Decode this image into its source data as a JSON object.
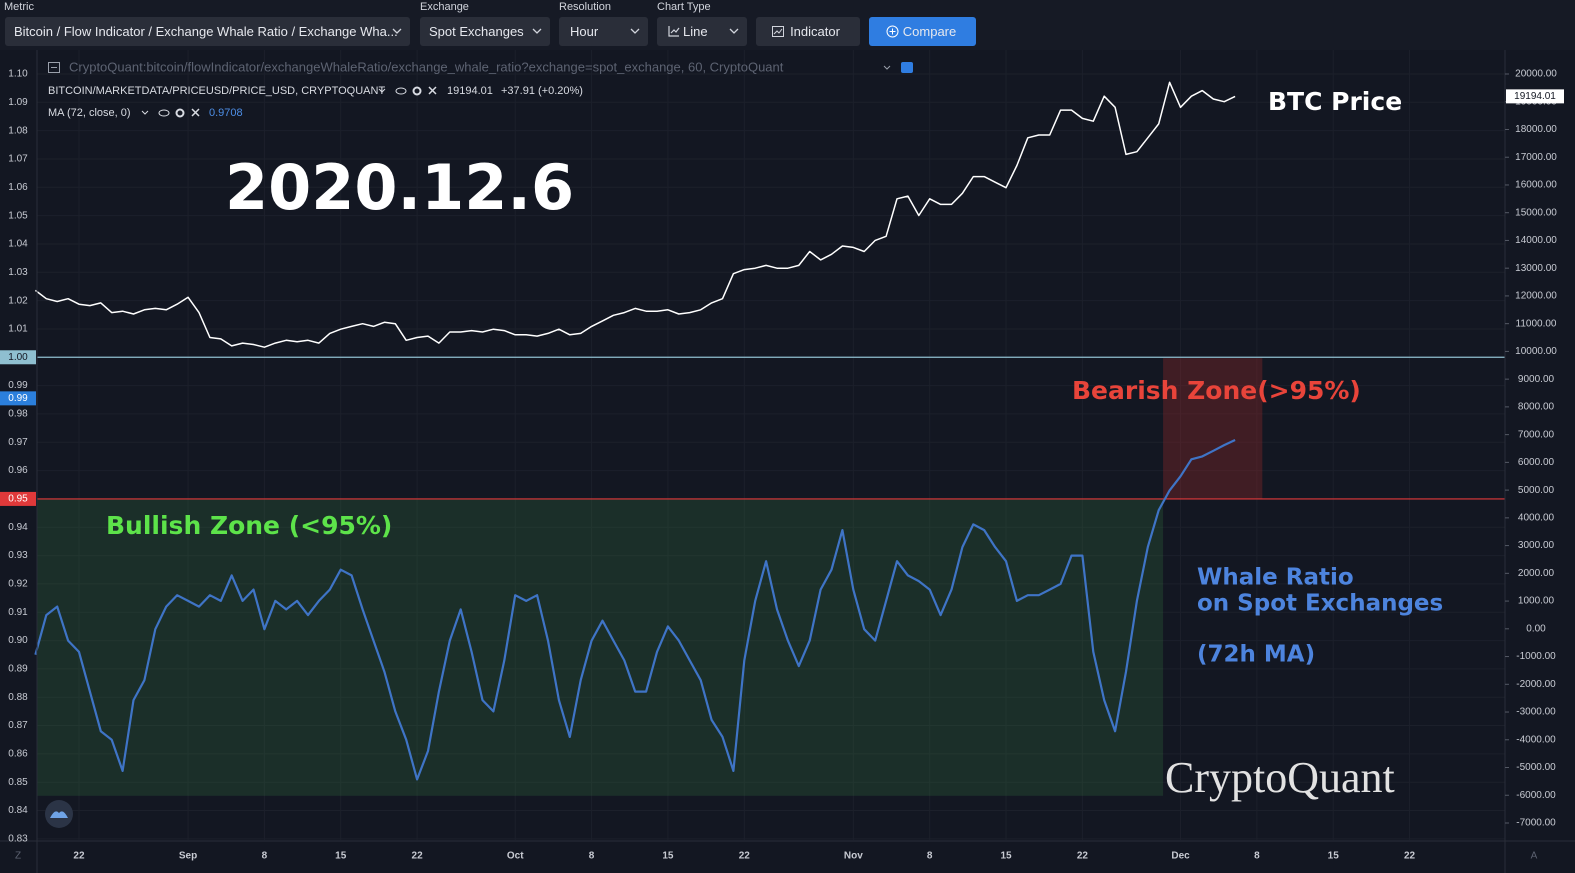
{
  "toolbar": {
    "metric_label": "Metric",
    "metric": "Bitcoin / Flow Indicator / Exchange Whale Ratio / Exchange Wha...",
    "exchange_label": "Exchange",
    "exchange": "Spot Exchanges",
    "resolution_label": "Resolution",
    "resolution": "Hour",
    "chart_type_label": "Chart Type",
    "chart_type": "Line",
    "indicator": "Indicator",
    "compare": "Compare"
  },
  "chart_data": {
    "type": "line",
    "source": "CryptoQuant:bitcoin/flowIndicator/exchangeWhaleRatio/exchange_whale_ratio?exchange=spot_exchange, 60, CryptoQuant",
    "price_change": "+37.91 (+0.20%)",
    "x": [
      -4,
      -3,
      -2,
      -1,
      0,
      1,
      2,
      3,
      4,
      5,
      6,
      7,
      8,
      9,
      10,
      11,
      12,
      13,
      14,
      15,
      16,
      17,
      18,
      19,
      20,
      21,
      22,
      23,
      24,
      25,
      26,
      27,
      28,
      29,
      30,
      31,
      32,
      33,
      34,
      35,
      36,
      37,
      38,
      39,
      40,
      41,
      42,
      43,
      44,
      45,
      46,
      47,
      48,
      49,
      50,
      51,
      52,
      53,
      54,
      55,
      56,
      57,
      58,
      59,
      60,
      61,
      62,
      63,
      64,
      65,
      66,
      67,
      68,
      69,
      70,
      71,
      72,
      73,
      74,
      75,
      76,
      77,
      78,
      79,
      80,
      81,
      82,
      83,
      84,
      85,
      86,
      87,
      88,
      89,
      90,
      91,
      92,
      93,
      94,
      95,
      96,
      97,
      98,
      99,
      100,
      101,
      102,
      103,
      104,
      105,
      106
    ],
    "series": [
      {
        "name": "BITCOIN/MARKETDATA/PRICEUSD/PRICE_USD, CRYPTOQUANT",
        "color": "#ffffff",
        "axis": "y2",
        "values": [
          12200,
          11900,
          11800,
          11900,
          11700,
          11650,
          11750,
          11400,
          11450,
          11350,
          11500,
          11550,
          11500,
          11700,
          11950,
          11400,
          10500,
          10450,
          10200,
          10300,
          10250,
          10150,
          10300,
          10400,
          10350,
          10400,
          10300,
          10650,
          10800,
          10900,
          11000,
          10900,
          11050,
          11000,
          10400,
          10500,
          10550,
          10300,
          10700,
          10700,
          10750,
          10700,
          10800,
          10750,
          10600,
          10600,
          10550,
          10650,
          10800,
          10600,
          10650,
          10900,
          11100,
          11300,
          11400,
          11550,
          11450,
          11450,
          11500,
          11350,
          11400,
          11500,
          11750,
          11900,
          12800,
          12950,
          13000,
          13100,
          13000,
          13000,
          13100,
          13600,
          13300,
          13500,
          13800,
          13750,
          13600,
          14000,
          14150,
          15500,
          15600,
          14900,
          15500,
          15300,
          15300,
          15700,
          16300,
          16300,
          16100,
          15900,
          16700,
          17700,
          17800,
          17800,
          18700,
          18700,
          18400,
          18300,
          19200,
          18800,
          17100,
          17200,
          17700,
          18200,
          19700,
          18800,
          19200,
          19400,
          19100,
          19000,
          19194.01
        ]
      },
      {
        "name": "MA (72, close, 0)",
        "color": "#3f74c6",
        "axis": "y",
        "values": [
          0.895,
          0.909,
          0.912,
          0.9,
          0.896,
          0.882,
          0.868,
          0.865,
          0.854,
          0.879,
          0.886,
          0.904,
          0.912,
          0.916,
          0.914,
          0.912,
          0.916,
          0.914,
          0.923,
          0.914,
          0.918,
          0.904,
          0.914,
          0.911,
          0.914,
          0.909,
          0.914,
          0.918,
          0.925,
          0.923,
          0.911,
          0.9,
          0.889,
          0.875,
          0.865,
          0.851,
          0.861,
          0.882,
          0.9,
          0.911,
          0.896,
          0.879,
          0.875,
          0.893,
          0.916,
          0.914,
          0.916,
          0.9,
          0.879,
          0.866,
          0.886,
          0.9,
          0.907,
          0.9,
          0.893,
          0.882,
          0.882,
          0.896,
          0.905,
          0.9,
          0.893,
          0.886,
          0.872,
          0.866,
          0.854,
          0.893,
          0.914,
          0.928,
          0.911,
          0.9,
          0.891,
          0.9,
          0.918,
          0.925,
          0.939,
          0.918,
          0.904,
          0.9,
          0.914,
          0.928,
          0.923,
          0.921,
          0.918,
          0.909,
          0.918,
          0.933,
          0.941,
          0.939,
          0.933,
          0.928,
          0.914,
          0.916,
          0.916,
          0.918,
          0.92,
          0.93,
          0.93,
          0.896,
          0.879,
          0.868,
          0.889,
          0.914,
          0.933,
          0.946,
          0.953,
          0.958,
          0.964,
          0.965,
          0.967,
          0.969,
          0.9708
        ]
      }
    ],
    "xlim": [
      -3.85,
      130.75
    ],
    "xticks": [
      {
        "value": 0,
        "label": "22"
      },
      {
        "value": 10,
        "label": "Sep"
      },
      {
        "value": 17,
        "label": "8"
      },
      {
        "value": 24,
        "label": "15"
      },
      {
        "value": 31,
        "label": "22"
      },
      {
        "value": 40,
        "label": "Oct"
      },
      {
        "value": 47,
        "label": "8"
      },
      {
        "value": 54,
        "label": "15"
      },
      {
        "value": 61,
        "label": "22"
      },
      {
        "value": 71,
        "label": "Nov"
      },
      {
        "value": 78,
        "label": "8"
      },
      {
        "value": 85,
        "label": "15"
      },
      {
        "value": 92,
        "label": "22"
      },
      {
        "value": 101,
        "label": "Dec"
      },
      {
        "value": 108,
        "label": "8"
      },
      {
        "value": 115,
        "label": "15"
      },
      {
        "value": 122,
        "label": "22"
      }
    ],
    "ylim": [
      0.8296,
      1.1067
    ],
    "yticks": [
      0.83,
      0.84,
      0.85,
      0.86,
      0.87,
      0.88,
      0.89,
      {
        "value": 0.9,
        "label": "0.90"
      },
      0.91,
      0.92,
      0.93,
      0.94,
      0.95,
      0.96,
      0.97,
      0.98,
      0.99,
      {
        "value": 1.0,
        "label": "1.00"
      },
      1.01,
      1.02,
      1.03,
      1.04,
      1.05,
      1.06,
      1.07,
      1.08,
      1.09,
      {
        "value": 1.1,
        "label": "1.10"
      }
    ],
    "y2lim": [
      -7613,
      20685
    ],
    "y2ticks": [
      {
        "value": -7000,
        "label": "-7000.00"
      },
      {
        "value": -6000,
        "label": "-6000.00"
      },
      {
        "value": -5000,
        "label": "-5000.00"
      },
      {
        "value": -4000,
        "label": "-4000.00"
      },
      {
        "value": -3000,
        "label": "-3000.00"
      },
      {
        "value": -2000,
        "label": "-2000.00"
      },
      {
        "value": -1000,
        "label": "-1000.00"
      },
      {
        "value": 0,
        "label": "0.00"
      },
      {
        "value": 1000,
        "label": "1000.00"
      },
      {
        "value": 2000,
        "label": "2000.00"
      },
      {
        "value": 3000,
        "label": "3000.00"
      },
      {
        "value": 4000,
        "label": "4000.00"
      },
      {
        "value": 5000,
        "label": "5000.00"
      },
      {
        "value": 6000,
        "label": "6000.00"
      },
      {
        "value": 7000,
        "label": "7000.00"
      },
      {
        "value": 8000,
        "label": "8000.00"
      },
      {
        "value": 9000,
        "label": "9000.00"
      },
      {
        "value": 10000,
        "label": "10000.00"
      },
      {
        "value": 11000,
        "label": "11000.00"
      },
      {
        "value": 12000,
        "label": "12000.00"
      },
      {
        "value": 13000,
        "label": "13000.00"
      },
      {
        "value": 14000,
        "label": "14000.00"
      },
      {
        "value": 15000,
        "label": "15000.00"
      },
      {
        "value": 16000,
        "label": "16000.00"
      },
      {
        "value": 17000,
        "label": "17000.00"
      },
      {
        "value": 18000,
        "label": "18000.00"
      },
      {
        "value": 19000,
        "label": "19000.00"
      },
      {
        "value": 20000,
        "label": "20000.00"
      }
    ],
    "grid": true,
    "hlines": [
      {
        "value": 1.0,
        "label": "1.00",
        "color": "#8fbfd0"
      },
      {
        "value": 0.95,
        "label": "0.95",
        "color": "#e0393a"
      }
    ],
    "marker": {
      "value": 0.9855,
      "label": "0.99",
      "color": "#2b7fdc"
    },
    "zones": [
      {
        "xlim": [
          -3.85,
          99.4
        ],
        "ylim": [
          0.8452,
          0.95
        ],
        "color": "rgba(52,110,60,0.28)"
      },
      {
        "xlim": [
          99.4,
          108.5
        ],
        "ylim": [
          0.95,
          0.9997
        ],
        "color": "rgba(150,40,40,0.35)"
      }
    ],
    "annotations": [
      {
        "text": "2020.12.6",
        "color": "#ffffff"
      },
      {
        "text": "BTC Price",
        "color": "#ffffff"
      },
      {
        "text": "Bearish Zone(>95%)",
        "color": "#e8443a"
      },
      {
        "text": "Bullish Zone (<95%)",
        "color": "#5de34a"
      },
      {
        "text": "Whale Ratio",
        "color": "#4d84de"
      },
      {
        "text": "on Spot Exchanges",
        "color": "#4d84de"
      },
      {
        "text": "(72h MA)",
        "color": "#4d84de"
      },
      {
        "text": "CryptoQuant",
        "color": "#e2e2e2"
      }
    ],
    "corner_labels": [
      "Z",
      "A"
    ]
  }
}
